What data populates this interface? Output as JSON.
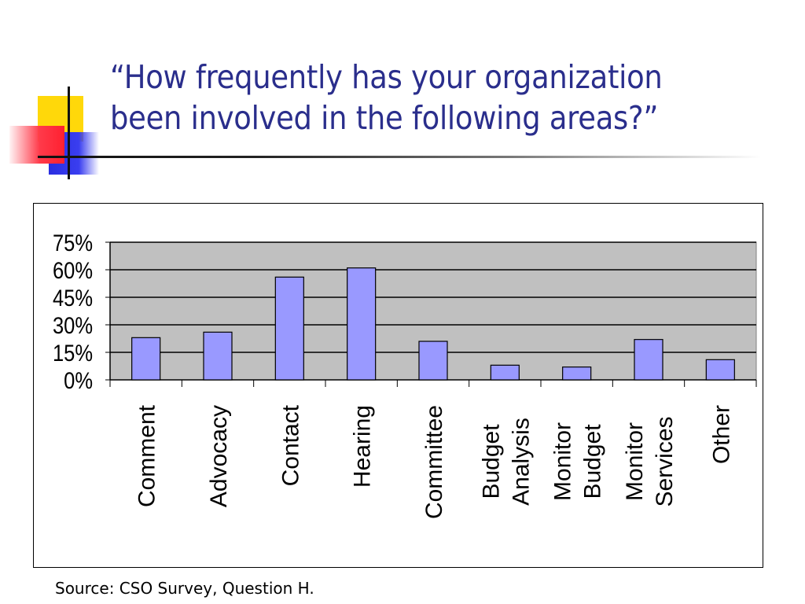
{
  "slide": {
    "title_line1": "“How frequently has your organization",
    "title_line2": "been involved in the following areas?”",
    "source": "Source: CSO Survey, Question H.",
    "title_color": "#2a2e8c"
  },
  "chart_data": {
    "type": "bar",
    "title": "",
    "xlabel": "",
    "ylabel": "",
    "categories": [
      [
        "Comment"
      ],
      [
        "Advocacy"
      ],
      [
        "Contact"
      ],
      [
        "Hearing"
      ],
      [
        "Committee"
      ],
      [
        "Budget",
        "Analysis"
      ],
      [
        "Monitor",
        "Budget"
      ],
      [
        "Monitor",
        "Services"
      ],
      [
        "Other"
      ]
    ],
    "series": [
      {
        "values": [
          23,
          26,
          56,
          61,
          21,
          8,
          7,
          22,
          11
        ],
        "color": "#9999ff"
      }
    ],
    "ylim": [
      0,
      75
    ],
    "yticks": [
      "0%",
      "15%",
      "30%",
      "45%",
      "60%",
      "75%"
    ],
    "ytick_values": [
      0,
      15,
      30,
      45,
      60,
      75
    ],
    "plot_background": "#c0c0c0",
    "grid": true,
    "legend": "none"
  }
}
